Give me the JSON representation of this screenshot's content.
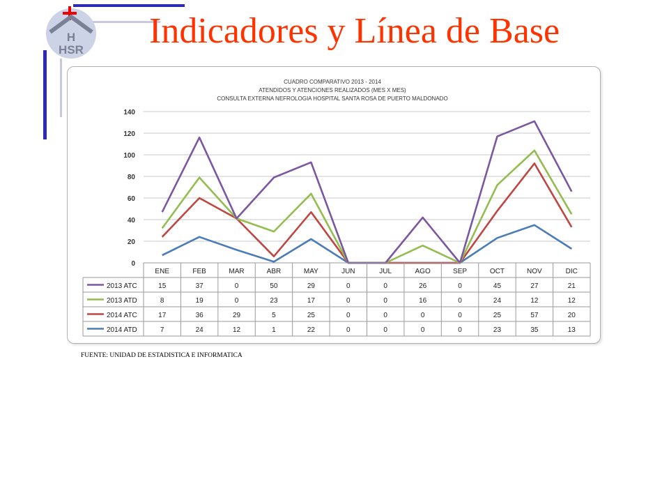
{
  "slide": {
    "title": "Indicadores y Línea de Base",
    "source": "FUENTE: UNIDAD DE ESTADISTICA E INFORMATICA",
    "logo_text": "HSR"
  },
  "colors": {
    "title": "#ff3300",
    "deco_blue": "#2b2bb8",
    "deco_red": "#ee0000"
  },
  "chart_data": {
    "type": "line",
    "title": "CUADRO COMPARATIVO 2013 - 2014",
    "subtitle": "ATENDIDOS Y ATENCIONES  REALIZADOS (MES X MES)",
    "subtitle2": "CONSULTA EXTERNA NEFROLOGIA HOSPITAL SANTA ROSA DE PUERTO MALDONADO",
    "categories": [
      "ENE",
      "FEB",
      "MAR",
      "ABR",
      "MAY",
      "JUN",
      "JUL",
      "AGO",
      "SEP",
      "OCT",
      "NOV",
      "DIC"
    ],
    "ylim": [
      0,
      140
    ],
    "yticks": [
      0,
      20,
      40,
      60,
      80,
      100,
      120,
      140
    ],
    "stacked": true,
    "grid": true,
    "legend": "data-table",
    "series": [
      {
        "name": "2013 ATC",
        "color": "#7b57a3",
        "values": [
          15,
          37,
          0,
          50,
          29,
          0,
          0,
          26,
          0,
          45,
          27,
          21
        ]
      },
      {
        "name": "2013 ATD",
        "color": "#94bd4f",
        "values": [
          8,
          19,
          0,
          23,
          17,
          0,
          0,
          16,
          0,
          24,
          12,
          12
        ]
      },
      {
        "name": "2014 ATC",
        "color": "#be4743",
        "values": [
          17,
          36,
          29,
          5,
          25,
          0,
          0,
          0,
          0,
          25,
          57,
          20
        ]
      },
      {
        "name": "2014 ATD",
        "color": "#4a7db7",
        "values": [
          7,
          24,
          12,
          1,
          22,
          0,
          0,
          0,
          0,
          23,
          35,
          13
        ]
      }
    ]
  }
}
